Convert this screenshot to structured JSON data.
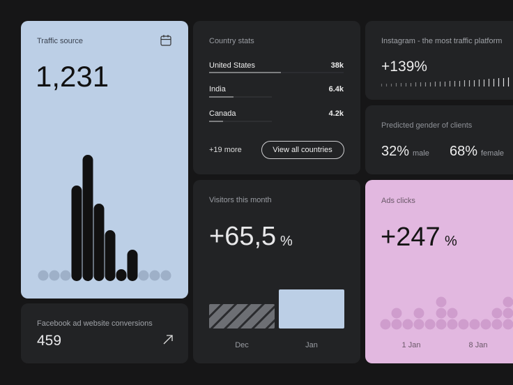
{
  "traffic_source": {
    "title": "Traffic source",
    "value": "1,231",
    "chart": {
      "type": "bar",
      "values": [
        0,
        0,
        0,
        137,
        181,
        111,
        73,
        17,
        45,
        0,
        0,
        0
      ],
      "ylim": [
        0,
        200
      ],
      "color": "#111111"
    }
  },
  "facebook": {
    "title": "Facebook ad website conversions",
    "value": "459"
  },
  "country_stats": {
    "title": "Country stats",
    "rows": [
      [
        "United States",
        "38k"
      ],
      [
        "India",
        "6.4k"
      ],
      [
        "Canada",
        "4.2k"
      ]
    ],
    "more": "+19 more",
    "button": "View all countries"
  },
  "visitors": {
    "title": "Visitors this month",
    "value": "+65,5",
    "unit": "%",
    "chart": {
      "type": "bar",
      "categories": [
        "Dec",
        "Jan"
      ],
      "values": [
        35,
        56
      ],
      "ylim": [
        0,
        60
      ]
    }
  },
  "instagram": {
    "title": "Instagram - the most traffic platform",
    "value": "+139%",
    "chart": {
      "type": "ticks",
      "values": [
        4,
        4,
        4,
        5,
        5,
        5,
        5,
        6,
        6,
        6,
        6,
        7,
        7,
        7,
        8,
        8,
        8,
        9,
        9,
        9,
        10,
        10,
        11,
        11,
        12,
        12,
        13
      ],
      "ylim": [
        0,
        13
      ]
    }
  },
  "gender": {
    "title": "Predicted gender of clients",
    "items": [
      {
        "value": "32%",
        "label": "male"
      },
      {
        "value": "68%",
        "label": "female"
      }
    ]
  },
  "ads": {
    "title": "Ads clicks",
    "value": "+247",
    "unit": "%",
    "chart": {
      "type": "dots",
      "values": [
        1,
        2,
        1,
        2,
        1,
        3,
        2,
        1,
        1,
        1,
        2,
        3
      ],
      "categories": [
        null,
        null,
        "1 Jan",
        null,
        null,
        null,
        null,
        null,
        "8 Jan",
        null,
        null,
        null
      ],
      "color": "#cf9dcd"
    }
  }
}
